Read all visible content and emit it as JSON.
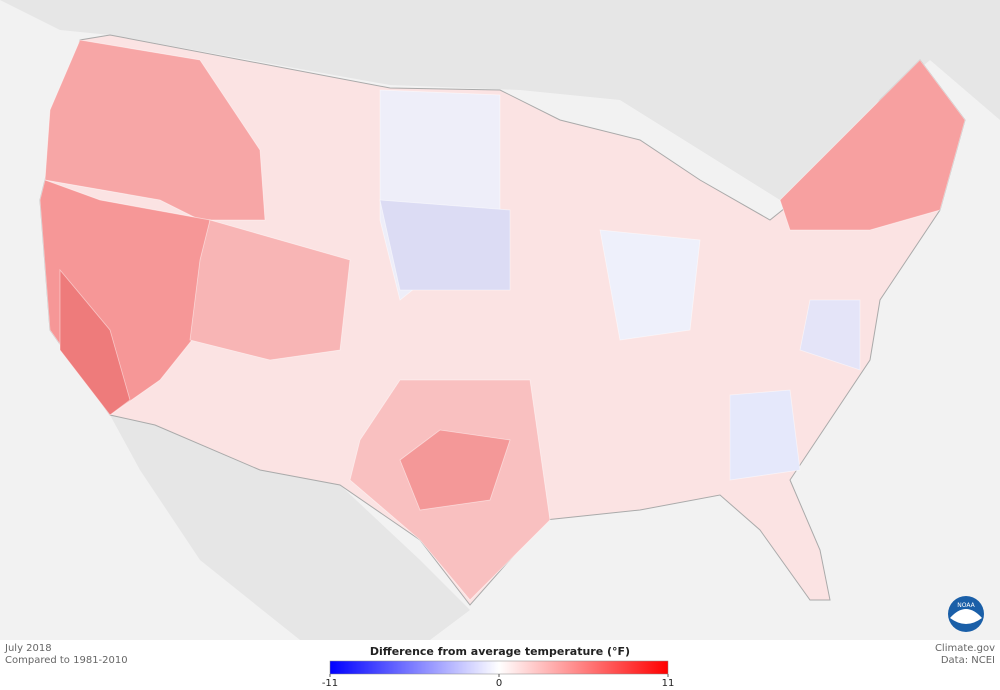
{
  "header": {
    "title": "July 2018",
    "subtitle": "Compared to 1981-2010"
  },
  "legend": {
    "title": "Difference from average temperature (°F)",
    "min": -11,
    "max": 11,
    "ticks": [
      -11,
      0,
      11
    ],
    "colors": [
      "#0000ff",
      "#ffffff",
      "#ff0000"
    ]
  },
  "credits": {
    "source": "Climate.gov",
    "data": "Data: NCEI",
    "logo": "NOAA"
  }
}
